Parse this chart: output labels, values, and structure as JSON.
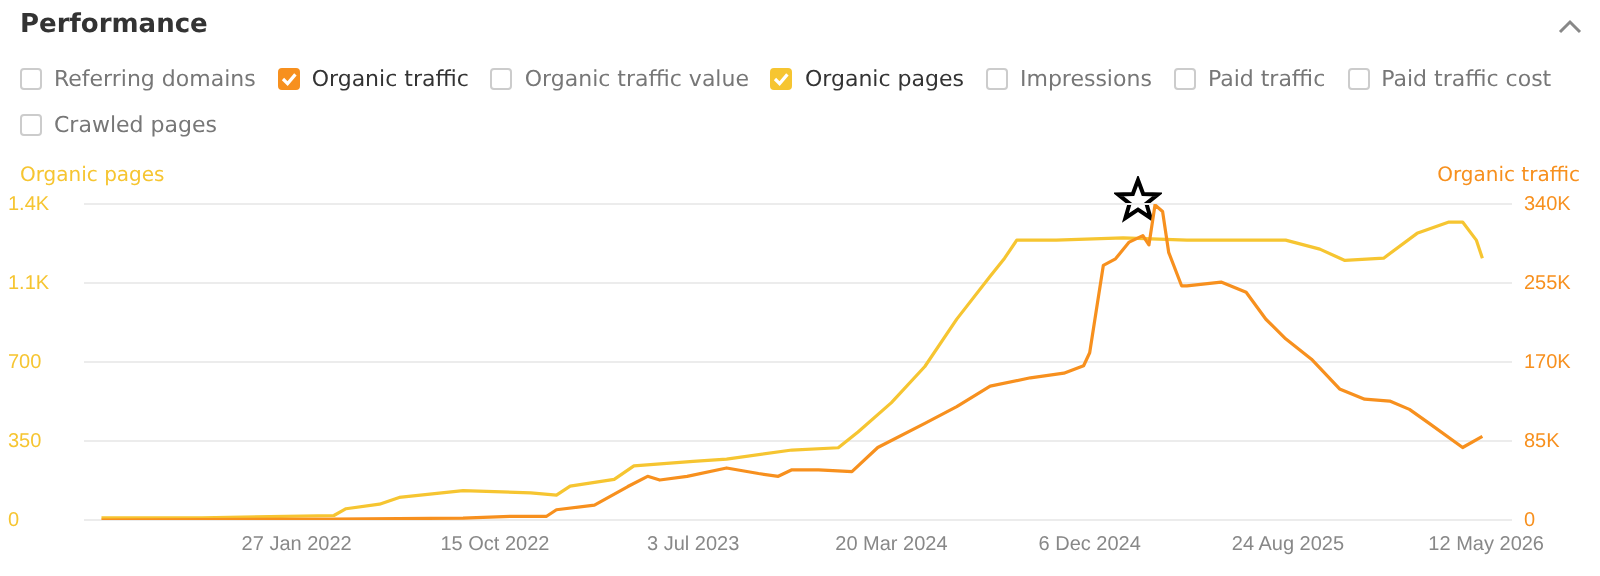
{
  "chart_data": {
    "type": "line",
    "title": "Performance",
    "ylabel": "Organic pages",
    "y2label": "Organic traffic",
    "legend": "top",
    "grid": "y",
    "marker": "none",
    "line_style": "solid",
    "annotations": [
      "Referring domains",
      "Organic traffic value",
      "Impressions",
      "Paid traffic",
      "Paid traffic cost",
      "Crawled pages"
    ],
    "xlim": [
      "2021-04-22",
      "2026-06-15"
    ],
    "xticks": [
      {
        "value": "2022-01-27",
        "label": "27 Jan 2022"
      },
      {
        "value": "2022-10-15",
        "label": "15 Oct 2022"
      },
      {
        "value": "2023-07-03",
        "label": "3 Jul 2023"
      },
      {
        "value": "2024-03-20",
        "label": "20 Mar 2024"
      },
      {
        "value": "2024-12-06",
        "label": "6 Dec 2024"
      },
      {
        "value": "2025-08-24",
        "label": "24 Aug 2025"
      },
      {
        "value": "2026-05-12",
        "label": "12 May 2026"
      }
    ],
    "ylim": [
      0,
      1400
    ],
    "yticks": [
      0,
      350,
      700,
      {
        "value": 1050,
        "label": "1.1K"
      },
      {
        "value": 1400,
        "label": "1.4K"
      }
    ],
    "y2lim": [
      0,
      340000
    ],
    "y2ticks": [
      0,
      {
        "value": 85000,
        "label": "85K"
      },
      {
        "value": 170000,
        "label": "170K"
      },
      {
        "value": 255000,
        "label": "255K"
      },
      {
        "value": 340000,
        "label": "340K"
      }
    ],
    "series": [
      {
        "name": "Organic traffic",
        "color": "#f7901e",
        "axis": "y2",
        "x": [
          "2021-05-15",
          "2022-03-17",
          "2022-09-03",
          "2022-11-05",
          "2022-12-22",
          "2023-01-04",
          "2023-02-23",
          "2023-04-08",
          "2023-05-04",
          "2023-05-20",
          "2023-06-25",
          "2023-08-16",
          "2023-09-27",
          "2023-10-23",
          "2023-11-10",
          "2023-12-15",
          "2024-01-28",
          "2024-03-02",
          "2024-05-03",
          "2024-06-14",
          "2024-07-28",
          "2024-09-19",
          "2024-11-02",
          "2024-11-28",
          "2024-12-06",
          "2024-12-24",
          "2025-01-09",
          "2025-01-27",
          "2025-02-14",
          "2025-02-22",
          "2025-03-02",
          "2025-03-12",
          "2025-03-20",
          "2025-04-06",
          "2025-04-13",
          "2025-05-28",
          "2025-06-30",
          "2025-07-26",
          "2025-08-21",
          "2025-09-24",
          "2025-10-31",
          "2025-12-03",
          "2026-01-05",
          "2026-01-31",
          "2026-02-26",
          "2026-04-11",
          "2026-05-07"
        ],
        "values": [
          0,
          1000,
          2000,
          4000,
          4000,
          11000,
          16000,
          36000,
          47000,
          43000,
          47000,
          56000,
          50000,
          47000,
          54000,
          54000,
          52000,
          78000,
          104000,
          122000,
          144000,
          153000,
          158000,
          166000,
          180000,
          274000,
          281000,
          299000,
          306000,
          296000,
          339000,
          332000,
          288000,
          252000,
          252000,
          256000,
          245000,
          216000,
          195000,
          173000,
          141000,
          130000,
          128000,
          119000,
          104000,
          78000,
          90000
        ]
      },
      {
        "name": "Organic pages",
        "color": "#f6c531",
        "x": [
          "2021-05-15",
          "2021-09-24",
          "2022-03-17",
          "2022-04-02",
          "2022-05-16",
          "2022-06-11",
          "2022-09-03",
          "2022-12-01",
          "2023-01-04",
          "2023-01-22",
          "2023-03-21",
          "2023-04-16",
          "2023-07-03",
          "2023-08-16",
          "2023-11-10",
          "2024-01-10",
          "2024-02-05",
          "2024-03-20",
          "2024-05-03",
          "2024-06-14",
          "2024-07-28",
          "2024-08-16",
          "2024-09-01",
          "2024-10-23",
          "2025-01-19",
          "2025-04-13",
          "2025-08-21",
          "2025-10-05",
          "2025-11-07",
          "2025-12-28",
          "2026-02-10",
          "2026-03-24",
          "2026-04-11",
          "2026-04-29",
          "2026-05-07"
        ],
        "values": [
          10,
          10,
          20,
          50,
          70,
          100,
          130,
          120,
          110,
          150,
          180,
          240,
          260,
          270,
          310,
          320,
          390,
          520,
          680,
          890,
          1080,
          1160,
          1240,
          1240,
          1250,
          1240,
          1240,
          1200,
          1150,
          1160,
          1270,
          1320,
          1320,
          1240,
          1160
        ]
      }
    ]
  }
}
